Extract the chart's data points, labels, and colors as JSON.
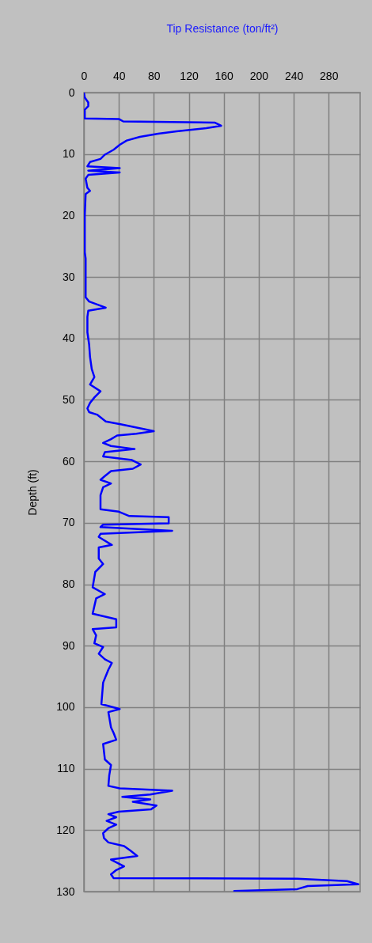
{
  "chart_data": {
    "type": "line",
    "xlabel": "Tip Resistance (ton/ft²)",
    "ylabel": "Depth (ft)",
    "xlim": [
      0,
      316
    ],
    "xticks": [
      0,
      40,
      80,
      120,
      160,
      200,
      240,
      280
    ],
    "ylim": [
      130,
      0
    ],
    "yticks": [
      0,
      10,
      20,
      30,
      40,
      50,
      60,
      70,
      80,
      90,
      100,
      110,
      120,
      130
    ],
    "grid": true,
    "series": [
      {
        "color": "#0000ff",
        "x": [
          0,
          1,
          5,
          5,
          1,
          1,
          40,
          45,
          150,
          157,
          140,
          106,
          85,
          64,
          49,
          41,
          34,
          24,
          19,
          7,
          4,
          41,
          5,
          41,
          5,
          2,
          4,
          7,
          2,
          1,
          1,
          2,
          2,
          6,
          25,
          5,
          4,
          4,
          6,
          7,
          9,
          12,
          7,
          19,
          12,
          7,
          4,
          6,
          15,
          25,
          43,
          67,
          80,
          60,
          38,
          31,
          22,
          31,
          58,
          24,
          22,
          55,
          65,
          56,
          31,
          24,
          19,
          31,
          22,
          19,
          19,
          40,
          52,
          97,
          97,
          22,
          19,
          101,
          19,
          17,
          32,
          17,
          17,
          22,
          13,
          10,
          24,
          14,
          10,
          37,
          37,
          10,
          14,
          12,
          22,
          17,
          24,
          32,
          28,
          22,
          20,
          41,
          28,
          31,
          34,
          37,
          22,
          24,
          31,
          29,
          28,
          41,
          101,
          76,
          44,
          76,
          56,
          83,
          77,
          40,
          28,
          37,
          26,
          37,
          28,
          22,
          23,
          28,
          46,
          53,
          61,
          31,
          46,
          37,
          31,
          34,
          244,
          301,
          314,
          256,
          244,
          172
        ],
        "values": [
          0,
          0.8,
          1.6,
          2.2,
          2.8,
          4.2,
          4.3,
          4.7,
          4.9,
          5.4,
          5.8,
          6.3,
          6.7,
          7.2,
          7.8,
          8.5,
          9.3,
          10.1,
          10.8,
          11.3,
          12.0,
          12.3,
          12.7,
          13.0,
          13.4,
          14.0,
          15.5,
          16.0,
          16.5,
          20,
          26,
          27,
          33.3,
          34,
          35.0,
          35.5,
          36.5,
          39,
          41,
          43,
          45,
          46.3,
          47.5,
          48.6,
          49.6,
          50.5,
          51.4,
          52.0,
          52.4,
          53.5,
          54.0,
          54.7,
          55.1,
          55.5,
          55.8,
          56.4,
          57.0,
          57.5,
          58.0,
          58.5,
          59.2,
          59.8,
          60.5,
          61.2,
          61.6,
          62.4,
          63.0,
          63.6,
          64.2,
          65.5,
          67.8,
          68.2,
          68.9,
          69.1,
          70.1,
          70.3,
          70.7,
          71.3,
          71.8,
          72.3,
          73.6,
          74.0,
          75.8,
          76.7,
          78.0,
          80.5,
          81.6,
          82.3,
          84.8,
          85.7,
          87.0,
          87.3,
          88.3,
          89.6,
          90.2,
          91.3,
          92.2,
          92.8,
          93.9,
          96.0,
          99.5,
          100.3,
          100.8,
          103.3,
          104.2,
          105.3,
          106.0,
          108.5,
          109.4,
          111.1,
          112.8,
          113.2,
          113.6,
          114.2,
          114.6,
          115.0,
          115.4,
          116.0,
          116.6,
          117.0,
          117.4,
          117.9,
          118.5,
          119.1,
          119.7,
          120.5,
          121.3,
          122.0,
          122.6,
          123.3,
          124.2,
          124.8,
          125.9,
          126.5,
          127.2,
          127.8,
          127.9,
          128.3,
          128.8,
          129.1,
          129.6,
          129.9
        ]
      }
    ]
  }
}
